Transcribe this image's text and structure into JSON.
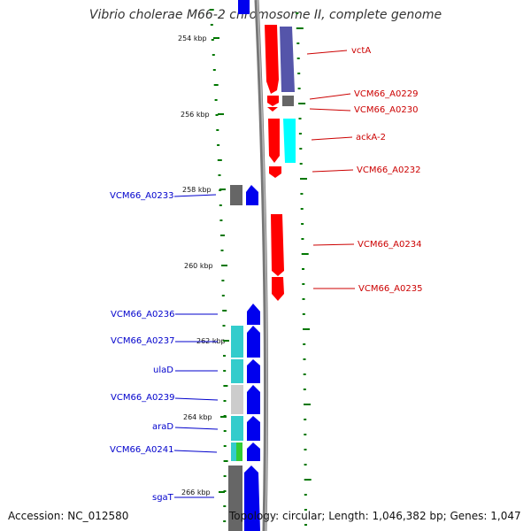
{
  "title": "Vibrio cholerae M66-2 chromosome II, complete genome",
  "footer": {
    "accession": "Accession: NC_012580",
    "topology": "Topology: circular; Length: 1,046,382 bp; Genes: 1,047"
  },
  "colors": {
    "red": "#ff0000",
    "blue": "#0000ee",
    "cyan": "#33cccc",
    "light_cyan": "#00ffff",
    "dark_gray": "#666666",
    "light_gray": "#cccccc",
    "green": "#33cc33",
    "purple": "#5555aa",
    "scale": "#007700",
    "backbone": "#888888"
  },
  "kbp_labels": [
    "254 kbp",
    "256 kbp",
    "258 kbp",
    "260 kbp",
    "262 kbp",
    "264 kbp",
    "266 kbp"
  ],
  "right_labels": [
    "vctA",
    "VCM66_A0229",
    "VCM66_A0230",
    "ackA-2",
    "VCM66_A0232",
    "VCM66_A0234",
    "VCM66_A0235"
  ],
  "left_labels": [
    "VCM66_A0233",
    "VCM66_A0236",
    "VCM66_A0237",
    "ulaD",
    "VCM66_A0239",
    "araD",
    "VCM66_A0241",
    "sgaT"
  ]
}
